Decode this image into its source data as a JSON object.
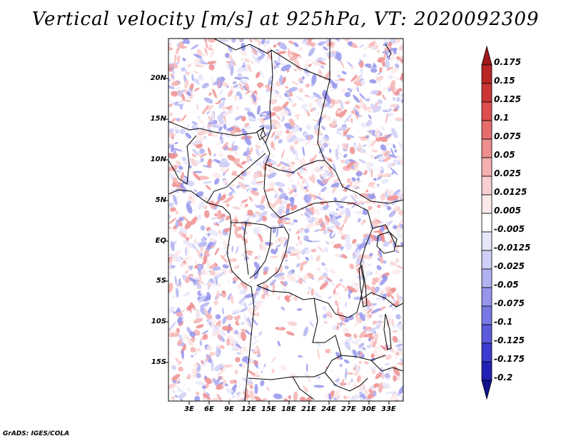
{
  "title": "Vertical velocity [m/s] at 925hPa, VT: 2020092309",
  "credit": "GrADS: IGES/COLA",
  "lat_ticks": [
    "20N",
    "15N",
    "10N",
    "5N",
    "EQ",
    "5S",
    "10S",
    "15S"
  ],
  "lon_ticks": [
    "3E",
    "6E",
    "9E",
    "12E",
    "15E",
    "18E",
    "21E",
    "24E",
    "27E",
    "30E",
    "33E"
  ],
  "colorbar": {
    "labels": [
      "0.175",
      "0.15",
      "0.125",
      "0.1",
      "0.075",
      "0.05",
      "0.025",
      "0.0125",
      "0.005",
      "-0.005",
      "-0.0125",
      "-0.025",
      "-0.05",
      "-0.075",
      "-0.1",
      "-0.125",
      "-0.175",
      "-0.2"
    ],
    "colors": [
      "#a01818",
      "#b82525",
      "#cc3535",
      "#dd4f4f",
      "#e66c6c",
      "#ee8e8e",
      "#f4b0b0",
      "#f9cfcf",
      "#fde9e9",
      "#ffffff",
      "#e7e7fc",
      "#cfcff7",
      "#b2b2f2",
      "#9595ec",
      "#7878e4",
      "#5a5adb",
      "#3c3cd0",
      "#2020b5",
      "#11118f"
    ]
  }
}
